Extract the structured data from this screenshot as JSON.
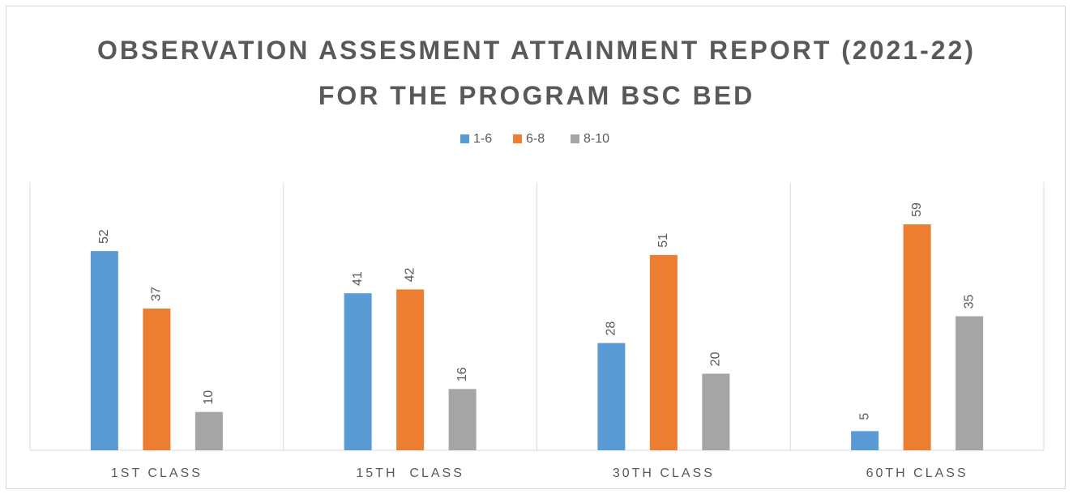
{
  "chart_data": {
    "type": "bar",
    "title": "OBSERVATION ASSESMENT ATTAINMENT REPORT (2021-22) FOR THE PROGRAM BSC BED",
    "categories": [
      "1ST CLASS",
      "15TH  CLASS",
      "30TH CLASS",
      "60TH CLASS"
    ],
    "series": [
      {
        "name": "1-6",
        "color": "#5b9bd5",
        "values": [
          52,
          41,
          28,
          5
        ]
      },
      {
        "name": "6-8",
        "color": "#ed7d31",
        "values": [
          37,
          42,
          51,
          59
        ]
      },
      {
        "name": "8-10",
        "color": "#a5a5a5",
        "values": [
          10,
          16,
          20,
          35
        ]
      }
    ],
    "ylim": [
      0,
      70
    ],
    "legend": "top"
  }
}
